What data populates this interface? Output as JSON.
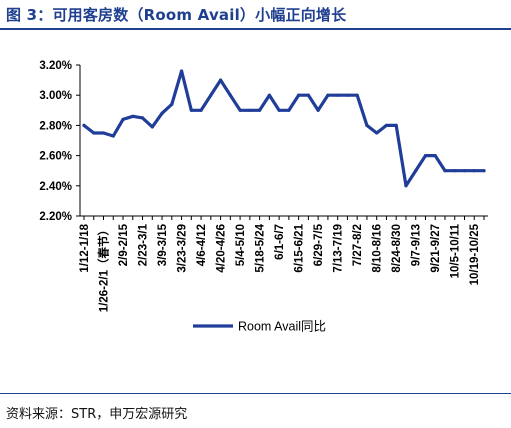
{
  "figure": {
    "title": "图 3：可用客房数（Room Avail）小幅正向增长",
    "source": "资料来源：STR，申万宏源研究"
  },
  "colors": {
    "accent": "#1f3f8f",
    "series": "#1f3d99"
  },
  "chart_data": {
    "type": "line",
    "title": "",
    "xlabel": "",
    "ylabel": "",
    "ylim": [
      2.2,
      3.2
    ],
    "y_ticks": [
      "2.20%",
      "2.40%",
      "2.60%",
      "2.80%",
      "3.00%",
      "3.20%"
    ],
    "y_tick_values": [
      2.2,
      2.4,
      2.6,
      2.8,
      3.0,
      3.2
    ],
    "x_tick_labels": [
      "1/12-1/18",
      "1/26-2/1（春节）",
      "2/9-2/15",
      "2/23-3/1",
      "3/9-3/15",
      "3/23-3/29",
      "4/6-4/12",
      "4/20-4/26",
      "5/4-5/10",
      "5/18-5/24",
      "6/1-6/7",
      "6/15-6/21",
      "6/29-7/5",
      "7/13-7/19",
      "7/27-8/2",
      "8/10-8/16",
      "8/24-8/30",
      "9/7-9/13",
      "9/21-9/27",
      "10/5-10/11",
      "10/19-10/25"
    ],
    "grid": false,
    "legend": "bottom-center",
    "series": [
      {
        "name": "Room Avail同比",
        "values": [
          2.8,
          2.75,
          2.75,
          2.73,
          2.84,
          2.86,
          2.85,
          2.79,
          2.88,
          2.94,
          3.16,
          2.9,
          2.9,
          3.0,
          3.1,
          3.0,
          2.9,
          2.9,
          2.9,
          3.0,
          2.9,
          2.9,
          3.0,
          3.0,
          2.9,
          3.0,
          3.0,
          3.0,
          3.0,
          2.8,
          2.75,
          2.8,
          2.8,
          2.4,
          2.5,
          2.6,
          2.6,
          2.5,
          2.5,
          2.5,
          2.5,
          2.5
        ]
      }
    ]
  }
}
